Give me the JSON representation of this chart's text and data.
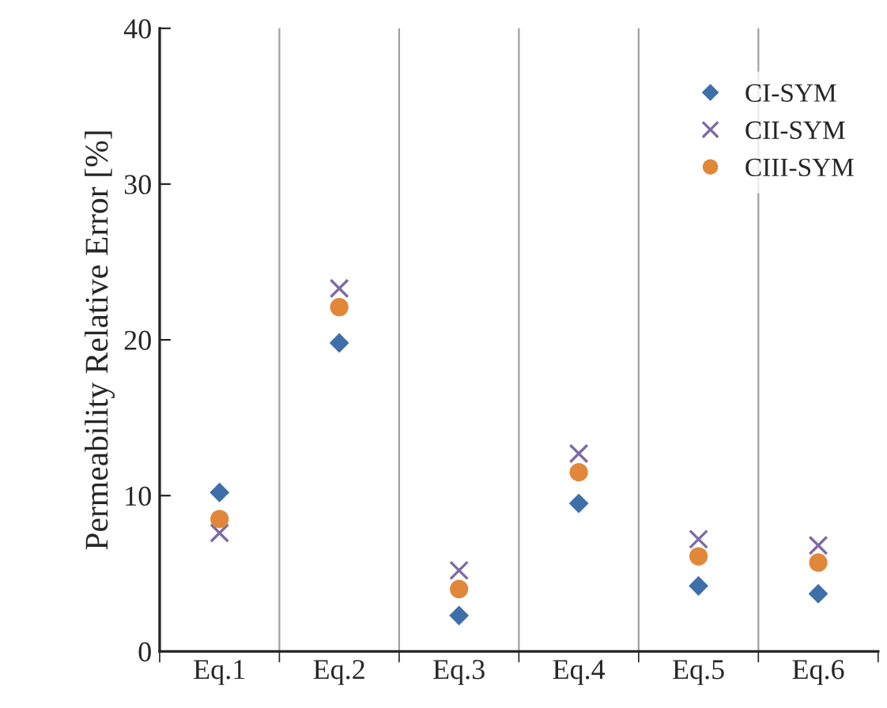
{
  "chart_data": {
    "type": "scatter",
    "ylabel": "Permeability Relative Error [%]",
    "categories": [
      "Eq.1",
      "Eq.2",
      "Eq.3",
      "Eq.4",
      "Eq.5",
      "Eq.6"
    ],
    "series": [
      {
        "name": "CI-SYM",
        "color": "#3f6fa8",
        "marker": "diamond",
        "values": [
          10.2,
          19.8,
          2.3,
          9.5,
          4.2,
          3.7
        ]
      },
      {
        "name": "CII-SYM",
        "color": "#7e6aa6",
        "marker": "cross",
        "values": [
          7.6,
          23.3,
          5.2,
          12.7,
          7.2,
          6.8
        ]
      },
      {
        "name": "CIII-SYM",
        "color": "#e0873a",
        "marker": "circle",
        "values": [
          8.5,
          22.1,
          4.0,
          11.5,
          6.1,
          5.7
        ]
      }
    ],
    "ylim": [
      0,
      40
    ],
    "yticks": [
      0,
      10,
      20,
      30,
      40
    ],
    "grid": "x",
    "legend": "top right"
  }
}
